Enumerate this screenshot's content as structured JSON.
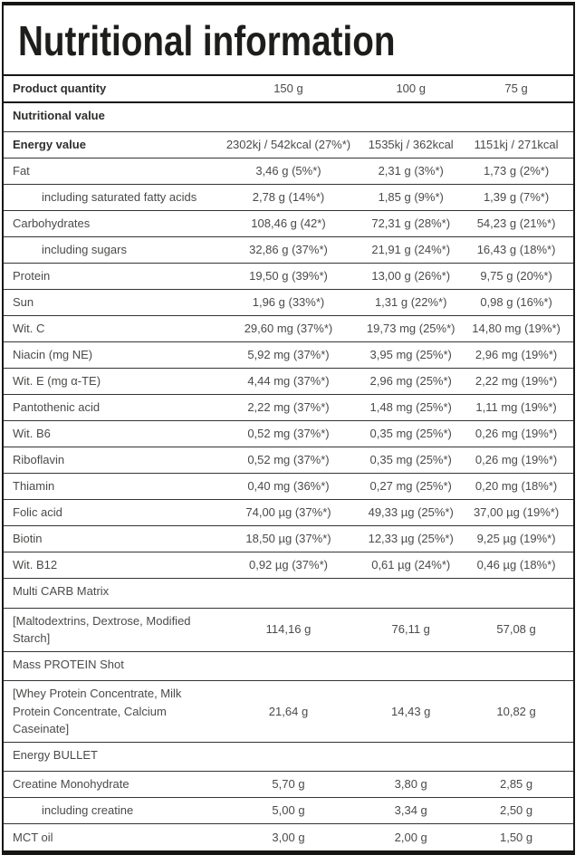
{
  "title": "Nutritional information",
  "header": {
    "label": "Product quantity",
    "values": [
      "150 g",
      "100 g",
      "75 g"
    ]
  },
  "rows": [
    {
      "label": "Nutritional value",
      "type": "section",
      "bold": true,
      "values": [
        "",
        "",
        ""
      ]
    },
    {
      "label": "Energy value",
      "bold": true,
      "values": [
        "2302kj / 542kcal (27%*)",
        "1535kj / 362kcal",
        "1151kj / 271kcal"
      ]
    },
    {
      "label": "Fat",
      "values": [
        "3,46 g (5%*)",
        "2,31 g (3%*)",
        "1,73 g (2%*)"
      ]
    },
    {
      "label": "including saturated fatty acids",
      "indent": true,
      "values": [
        "2,78 g (14%*)",
        "1,85 g (9%*)",
        "1,39 g (7%*)"
      ]
    },
    {
      "label": "Carbohydrates",
      "values": [
        "108,46 g (42*)",
        "72,31 g (28%*)",
        "54,23 g (21%*)"
      ]
    },
    {
      "label": "including sugars",
      "indent": true,
      "values": [
        "32,86 g (37%*)",
        "21,91 g (24%*)",
        "16,43 g (18%*)"
      ]
    },
    {
      "label": "Protein",
      "values": [
        "19,50 g (39%*)",
        "13,00 g (26%*)",
        "9,75 g (20%*)"
      ]
    },
    {
      "label": "Sun",
      "values": [
        "1,96 g (33%*)",
        "1,31 g (22%*)",
        "0,98 g (16%*)"
      ]
    },
    {
      "label": "Wit. C",
      "values": [
        "29,60 mg (37%*)",
        "19,73 mg (25%*)",
        "14,80 mg (19%*)"
      ]
    },
    {
      "label": "Niacin (mg NE)",
      "values": [
        "5,92 mg (37%*)",
        "3,95 mg (25%*)",
        "2,96 mg (19%*)"
      ]
    },
    {
      "label": "Wit. E (mg α-TE)",
      "values": [
        "4,44 mg (37%*)",
        "2,96 mg (25%*)",
        "2,22 mg (19%*)"
      ]
    },
    {
      "label": "Pantothenic acid",
      "values": [
        "2,22 mg (37%*)",
        "1,48 mg (25%*)",
        "1,11 mg (19%*)"
      ]
    },
    {
      "label": "Wit. B6",
      "values": [
        "0,52 mg (37%*)",
        "0,35 mg (25%*)",
        "0,26 mg (19%*)"
      ]
    },
    {
      "label": "Riboflavin",
      "values": [
        "0,52 mg (37%*)",
        "0,35 mg (25%*)",
        "0,26 mg (19%*)"
      ]
    },
    {
      "label": "Thiamin",
      "values": [
        "0,40 mg (36%*)",
        "0,27 mg (25%*)",
        "0,20 mg (18%*)"
      ]
    },
    {
      "label": "Folic acid",
      "values": [
        "74,00 µg (37%*)",
        "49,33 µg (25%*)",
        "37,00 µg (19%*)"
      ]
    },
    {
      "label": "Biotin",
      "values": [
        "18,50 µg (37%*)",
        "12,33 µg (25%*)",
        "9,25 µg (19%*)"
      ]
    },
    {
      "label": "Wit. B12",
      "values": [
        "0,92 µg (37%*)",
        "0,61 µg (24%*)",
        "0,46 µg (18%*)"
      ]
    },
    {
      "label": "Multi CARB Matrix",
      "type": "section",
      "values": [
        "",
        "",
        ""
      ]
    },
    {
      "label": "[Maltodextrins, Dextrose, Modified Starch]",
      "values": [
        "114,16 g",
        "76,11 g",
        "57,08 g"
      ]
    },
    {
      "label": "Mass PROTEIN Shot",
      "type": "section",
      "values": [
        "",
        "",
        ""
      ]
    },
    {
      "label": "[Whey Protein Concentrate, Milk Protein Concentrate, Calcium Caseinate]",
      "values": [
        "21,64 g",
        "14,43 g",
        "10,82 g"
      ]
    },
    {
      "label": "Energy BULLET",
      "type": "section",
      "values": [
        "",
        "",
        ""
      ]
    },
    {
      "label": "Creatine Monohydrate",
      "values": [
        "5,70 g",
        "3,80 g",
        "2,85 g"
      ]
    },
    {
      "label": "including creatine",
      "indent": true,
      "values": [
        "5,00 g",
        "3,34 g",
        "2,50 g"
      ]
    },
    {
      "label": "MCT oil",
      "values": [
        "3,00 g",
        "2,00 g",
        "1,50 g"
      ]
    }
  ]
}
